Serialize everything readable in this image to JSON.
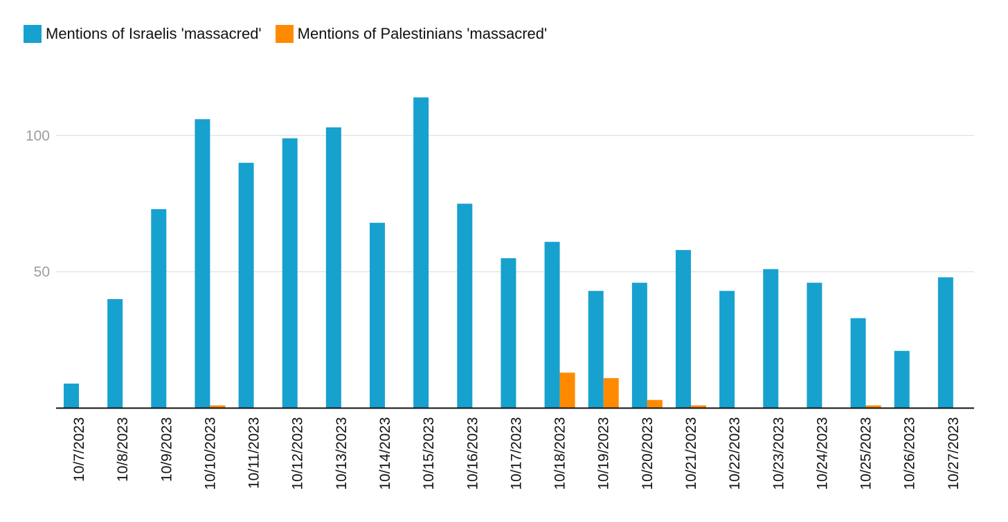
{
  "colors": {
    "israelis": "#17a1cf",
    "palestinians": "#ff8a00",
    "grid": "#d9d9d9",
    "axis": "#111111"
  },
  "chart_data": {
    "type": "bar",
    "title": "",
    "xlabel": "",
    "ylabel": "",
    "ylim": [
      0,
      120
    ],
    "yticks": [
      50,
      100
    ],
    "grid": true,
    "legend_position": "top-left",
    "categories": [
      "10/7/2023",
      "10/8/2023",
      "10/9/2023",
      "10/10/2023",
      "10/11/2023",
      "10/12/2023",
      "10/13/2023",
      "10/14/2023",
      "10/15/2023",
      "10/16/2023",
      "10/17/2023",
      "10/18/2023",
      "10/19/2023",
      "10/20/2023",
      "10/21/2023",
      "10/22/2023",
      "10/23/2023",
      "10/24/2023",
      "10/25/2023",
      "10/26/2023",
      "10/27/2023"
    ],
    "series": [
      {
        "name": "Mentions of Israelis 'massacred'",
        "values": [
          9,
          40,
          73,
          106,
          90,
          99,
          103,
          68,
          114,
          75,
          55,
          61,
          43,
          46,
          58,
          43,
          51,
          46,
          33,
          21,
          48
        ]
      },
      {
        "name": "Mentions of Palestinians 'massacred'",
        "values": [
          0,
          0,
          0,
          1,
          0,
          0,
          0,
          0,
          0,
          0,
          0,
          13,
          11,
          3,
          1,
          0,
          0,
          0,
          1,
          0,
          0
        ]
      }
    ]
  }
}
